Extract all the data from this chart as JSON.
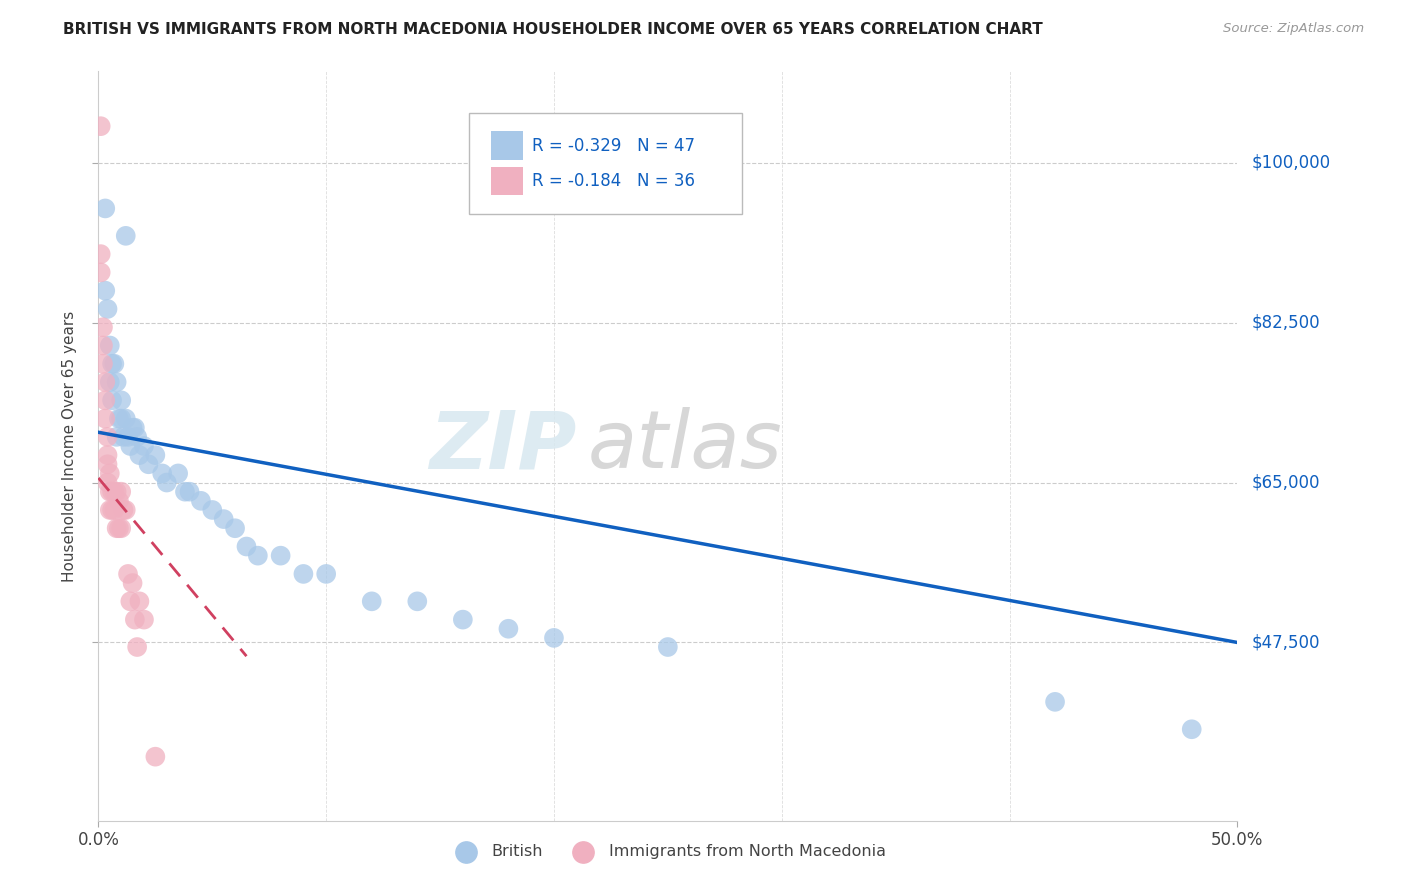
{
  "title": "BRITISH VS IMMIGRANTS FROM NORTH MACEDONIA HOUSEHOLDER INCOME OVER 65 YEARS CORRELATION CHART",
  "source": "Source: ZipAtlas.com",
  "ylabel": "Householder Income Over 65 years",
  "xlim": [
    0.0,
    0.5
  ],
  "ylim": [
    28000,
    110000
  ],
  "yticks": [
    47500,
    65000,
    82500,
    100000
  ],
  "ytick_labels": [
    "$47,500",
    "$65,000",
    "$82,500",
    "$100,000"
  ],
  "xtick_positions": [
    0.0,
    0.5
  ],
  "xtick_labels": [
    "0.0%",
    "50.0%"
  ],
  "british_color": "#a8c8e8",
  "macedonian_color": "#f0b0c0",
  "british_line_color": "#1060c0",
  "macedonian_line_color": "#d04060",
  "macedonian_line_dash": [
    6,
    4
  ],
  "watermark_text": "ZIP atlas",
  "legend_r_british": "-0.329",
  "legend_n_british": "47",
  "legend_r_macedonian": "-0.184",
  "legend_n_macedonian": "36",
  "british_x": [
    0.003,
    0.012,
    0.003,
    0.004,
    0.005,
    0.006,
    0.005,
    0.007,
    0.008,
    0.006,
    0.009,
    0.01,
    0.008,
    0.01,
    0.011,
    0.012,
    0.013,
    0.015,
    0.014,
    0.016,
    0.017,
    0.018,
    0.02,
    0.022,
    0.025,
    0.028,
    0.03,
    0.035,
    0.038,
    0.04,
    0.045,
    0.05,
    0.055,
    0.06,
    0.065,
    0.07,
    0.08,
    0.09,
    0.1,
    0.12,
    0.14,
    0.16,
    0.18,
    0.2,
    0.25,
    0.42,
    0.48
  ],
  "british_y": [
    95000,
    92000,
    86000,
    84000,
    80000,
    78000,
    76000,
    78000,
    76000,
    74000,
    72000,
    74000,
    70000,
    72000,
    70000,
    72000,
    70000,
    71000,
    69000,
    71000,
    70000,
    68000,
    69000,
    67000,
    68000,
    66000,
    65000,
    66000,
    64000,
    64000,
    63000,
    62000,
    61000,
    60000,
    58000,
    57000,
    57000,
    55000,
    55000,
    52000,
    52000,
    50000,
    49000,
    48000,
    47000,
    41000,
    38000
  ],
  "macedonian_x": [
    0.001,
    0.001,
    0.001,
    0.002,
    0.002,
    0.002,
    0.003,
    0.003,
    0.003,
    0.004,
    0.004,
    0.004,
    0.004,
    0.005,
    0.005,
    0.005,
    0.006,
    0.006,
    0.007,
    0.007,
    0.008,
    0.008,
    0.009,
    0.009,
    0.01,
    0.01,
    0.011,
    0.012,
    0.013,
    0.014,
    0.015,
    0.016,
    0.017,
    0.018,
    0.02,
    0.025
  ],
  "macedonian_y": [
    104000,
    90000,
    88000,
    82000,
    80000,
    78000,
    76000,
    74000,
    72000,
    70000,
    68000,
    67000,
    65000,
    66000,
    64000,
    62000,
    64000,
    62000,
    64000,
    62000,
    64000,
    60000,
    63000,
    60000,
    64000,
    60000,
    62000,
    62000,
    55000,
    52000,
    54000,
    50000,
    47000,
    52000,
    50000,
    35000
  ],
  "british_line_x": [
    0.0,
    0.5
  ],
  "british_line_y": [
    70500,
    47500
  ],
  "macedonian_line_x": [
    0.0,
    0.065
  ],
  "macedonian_line_y": [
    65500,
    46000
  ]
}
